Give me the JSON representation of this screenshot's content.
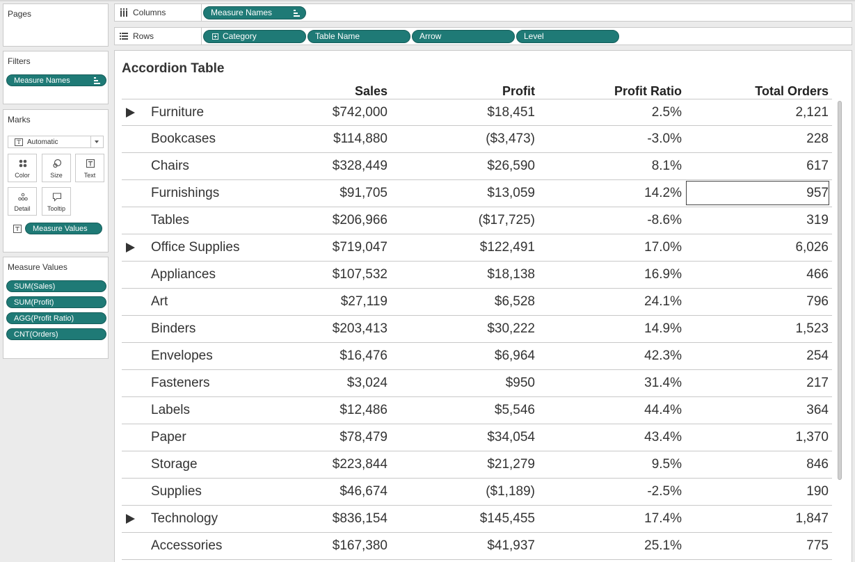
{
  "shelves": {
    "columns": {
      "label": "Columns",
      "pills": [
        "Measure Names"
      ]
    },
    "rows": {
      "label": "Rows",
      "pills": [
        "Category",
        "Table Name",
        "Arrow",
        "Level"
      ]
    }
  },
  "pages": {
    "title": "Pages"
  },
  "filters": {
    "title": "Filters",
    "pill": "Measure Names"
  },
  "marks": {
    "title": "Marks",
    "type": "Automatic",
    "buttons": [
      "Color",
      "Size",
      "Text",
      "Detail",
      "Tooltip"
    ],
    "text_pill": "Measure Values"
  },
  "measure_values": {
    "title": "Measure Values",
    "pills": [
      "SUM(Sales)",
      "SUM(Profit)",
      "AGG(Profit Ratio)",
      "CNT(Orders)"
    ]
  },
  "table": {
    "title": "Accordion Table",
    "headers": [
      "Sales",
      "Profit",
      "Profit Ratio",
      "Total Orders"
    ],
    "rows": [
      {
        "arrow": true,
        "name": "Furniture",
        "sales": "$742,000",
        "profit": "$18,451",
        "ratio": "2.5%",
        "orders": "2,121"
      },
      {
        "arrow": false,
        "name": "Bookcases",
        "sales": "$114,880",
        "profit": "($3,473)",
        "ratio": "-3.0%",
        "orders": "228"
      },
      {
        "arrow": false,
        "name": "Chairs",
        "sales": "$328,449",
        "profit": "$26,590",
        "ratio": "8.1%",
        "orders": "617"
      },
      {
        "arrow": false,
        "name": "Furnishings",
        "sales": "$91,705",
        "profit": "$13,059",
        "ratio": "14.2%",
        "orders": "957",
        "selected": true
      },
      {
        "arrow": false,
        "name": "Tables",
        "sales": "$206,966",
        "profit": "($17,725)",
        "ratio": "-8.6%",
        "orders": "319"
      },
      {
        "arrow": true,
        "name": "Office Supplies",
        "sales": "$719,047",
        "profit": "$122,491",
        "ratio": "17.0%",
        "orders": "6,026"
      },
      {
        "arrow": false,
        "name": "Appliances",
        "sales": "$107,532",
        "profit": "$18,138",
        "ratio": "16.9%",
        "orders": "466"
      },
      {
        "arrow": false,
        "name": "Art",
        "sales": "$27,119",
        "profit": "$6,528",
        "ratio": "24.1%",
        "orders": "796"
      },
      {
        "arrow": false,
        "name": "Binders",
        "sales": "$203,413",
        "profit": "$30,222",
        "ratio": "14.9%",
        "orders": "1,523"
      },
      {
        "arrow": false,
        "name": "Envelopes",
        "sales": "$16,476",
        "profit": "$6,964",
        "ratio": "42.3%",
        "orders": "254"
      },
      {
        "arrow": false,
        "name": "Fasteners",
        "sales": "$3,024",
        "profit": "$950",
        "ratio": "31.4%",
        "orders": "217"
      },
      {
        "arrow": false,
        "name": "Labels",
        "sales": "$12,486",
        "profit": "$5,546",
        "ratio": "44.4%",
        "orders": "364"
      },
      {
        "arrow": false,
        "name": "Paper",
        "sales": "$78,479",
        "profit": "$34,054",
        "ratio": "43.4%",
        "orders": "1,370"
      },
      {
        "arrow": false,
        "name": "Storage",
        "sales": "$223,844",
        "profit": "$21,279",
        "ratio": "9.5%",
        "orders": "846"
      },
      {
        "arrow": false,
        "name": "Supplies",
        "sales": "$46,674",
        "profit": "($1,189)",
        "ratio": "-2.5%",
        "orders": "190"
      },
      {
        "arrow": true,
        "name": "Technology",
        "sales": "$836,154",
        "profit": "$145,455",
        "ratio": "17.4%",
        "orders": "1,847"
      },
      {
        "arrow": false,
        "name": "Accessories",
        "sales": "$167,380",
        "profit": "$41,937",
        "ratio": "25.1%",
        "orders": "775"
      }
    ]
  },
  "colors": {
    "pill": "#1f7a76",
    "panel_border": "#c9c9c9"
  }
}
